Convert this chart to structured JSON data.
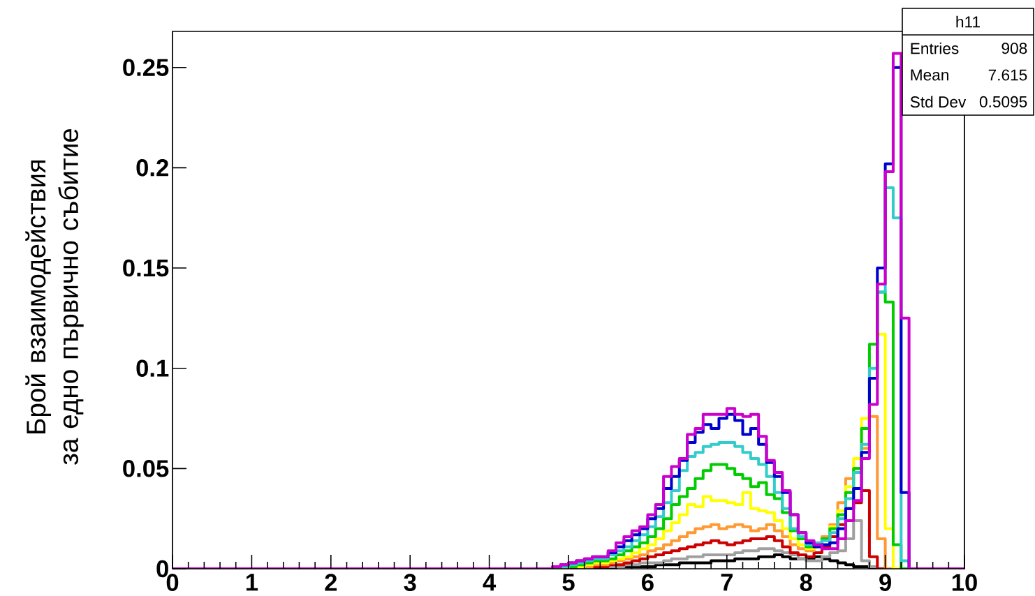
{
  "chart_data": {
    "type": "histogram",
    "ylabel": "Брой взаимодействия за едно първично събитие",
    "annotations": [
      "h11",
      "Entries",
      "908",
      "Mean",
      "7.615",
      "Std Dev",
      "0.5095"
    ],
    "xlim": [
      0,
      10
    ],
    "ylim": [
      0,
      0.268
    ],
    "xticks": [
      0,
      1,
      2,
      3,
      4,
      5,
      6,
      7,
      8,
      9,
      10
    ],
    "yticks": [
      0,
      0.05,
      0.1,
      0.15,
      0.2,
      0.25
    ],
    "bins": [
      0,
      0.1,
      0.2,
      0.3,
      0.4,
      0.5,
      0.6,
      0.7,
      0.8,
      0.9,
      1,
      1.1,
      1.2,
      1.3,
      1.4,
      1.5,
      1.6,
      1.7,
      1.8,
      1.9,
      2,
      2.1,
      2.2,
      2.3,
      2.4,
      2.5,
      2.6,
      2.7,
      2.8,
      2.9,
      3,
      3.1,
      3.2,
      3.3,
      3.4,
      3.5,
      3.6,
      3.7,
      3.8,
      3.9,
      4,
      4.1,
      4.2,
      4.3,
      4.4,
      4.5,
      4.6,
      4.7,
      4.8,
      4.9,
      5,
      5.1,
      5.2,
      5.3,
      5.4,
      5.5,
      5.6,
      5.7,
      5.8,
      5.9,
      6,
      6.1,
      6.2,
      6.3,
      6.4,
      6.5,
      6.6,
      6.7,
      6.8,
      6.9,
      7,
      7.1,
      7.2,
      7.3,
      7.4,
      7.5,
      7.6,
      7.7,
      7.8,
      7.9,
      8,
      8.1,
      8.2,
      8.3,
      8.4,
      8.5,
      8.6,
      8.7,
      8.8,
      8.9,
      9,
      9.1,
      9.2,
      9.3,
      9.4,
      9.5,
      9.6,
      9.7,
      9.8,
      9.9,
      10
    ],
    "series": [
      {
        "color": "#000000",
        "values": [
          0,
          0,
          0,
          0,
          0,
          0,
          0,
          0,
          0,
          0,
          0,
          0,
          0,
          0,
          0,
          0,
          0,
          0,
          0,
          0,
          0,
          0,
          0,
          0,
          0,
          0,
          0,
          0,
          0,
          0,
          0,
          0,
          0,
          0,
          0,
          0,
          0,
          0,
          0,
          0,
          0,
          0,
          0,
          0,
          0,
          0,
          0,
          0,
          0,
          0,
          0,
          0,
          0,
          0,
          0,
          0,
          0.001,
          0.001,
          0.001,
          0.001,
          0.001,
          0.002,
          0.002,
          0.002,
          0.003,
          0.003,
          0.003,
          0.003,
          0.004,
          0.004,
          0.004,
          0.005,
          0.005,
          0.005,
          0.006,
          0.006,
          0.007,
          0.006,
          0.005,
          0.005,
          0.005,
          0.006,
          0.005,
          0.004,
          0.003,
          0.002,
          0.001,
          0.001,
          0,
          0,
          0,
          0,
          0,
          0,
          0,
          0,
          0,
          0,
          0,
          0
        ]
      },
      {
        "color": "#a0a0a0",
        "values": [
          0,
          0,
          0,
          0,
          0,
          0,
          0,
          0,
          0,
          0,
          0,
          0,
          0,
          0,
          0,
          0,
          0,
          0,
          0,
          0,
          0,
          0,
          0,
          0,
          0,
          0,
          0,
          0,
          0,
          0,
          0,
          0,
          0,
          0,
          0,
          0,
          0,
          0,
          0,
          0,
          0,
          0,
          0,
          0,
          0,
          0,
          0,
          0,
          0,
          0,
          0,
          0,
          0,
          0.001,
          0.001,
          0.001,
          0.001,
          0.002,
          0.002,
          0.003,
          0.003,
          0.003,
          0.004,
          0.005,
          0.005,
          0.006,
          0.006,
          0.007,
          0.007,
          0.007,
          0.007,
          0.008,
          0.009,
          0.009,
          0.01,
          0.01,
          0.009,
          0.008,
          0.007,
          0.005,
          0.004,
          0.004,
          0.006,
          0.008,
          0.009,
          0.015,
          0.024,
          0.004,
          0.001,
          0,
          0,
          0,
          0,
          0,
          0,
          0,
          0,
          0,
          0,
          0
        ]
      },
      {
        "color": "#cc0000",
        "values": [
          0,
          0,
          0,
          0,
          0,
          0,
          0,
          0,
          0,
          0,
          0,
          0,
          0,
          0,
          0,
          0,
          0,
          0,
          0,
          0,
          0,
          0,
          0,
          0,
          0,
          0,
          0,
          0,
          0,
          0,
          0,
          0,
          0,
          0,
          0,
          0,
          0,
          0,
          0,
          0,
          0,
          0,
          0,
          0,
          0,
          0,
          0,
          0,
          0,
          0,
          0,
          0.001,
          0.001,
          0.001,
          0.001,
          0.002,
          0.002,
          0.003,
          0.004,
          0.005,
          0.006,
          0.007,
          0.008,
          0.009,
          0.01,
          0.011,
          0.012,
          0.013,
          0.014,
          0.013,
          0.012,
          0.013,
          0.014,
          0.015,
          0.015,
          0.016,
          0.014,
          0.011,
          0.008,
          0.007,
          0.006,
          0.008,
          0.011,
          0.016,
          0.022,
          0.03,
          0.033,
          0.039,
          0.006,
          0,
          0,
          0,
          0,
          0,
          0,
          0,
          0,
          0,
          0,
          0
        ]
      },
      {
        "color": "#ff9933",
        "values": [
          0,
          0,
          0,
          0,
          0,
          0,
          0,
          0,
          0,
          0,
          0,
          0,
          0,
          0,
          0,
          0,
          0,
          0,
          0,
          0,
          0,
          0,
          0,
          0,
          0,
          0,
          0,
          0,
          0,
          0,
          0,
          0,
          0,
          0,
          0,
          0,
          0,
          0,
          0,
          0,
          0,
          0,
          0,
          0,
          0,
          0,
          0,
          0,
          0,
          0,
          0.001,
          0.001,
          0.001,
          0.002,
          0.002,
          0.003,
          0.004,
          0.005,
          0.006,
          0.007,
          0.009,
          0.01,
          0.012,
          0.014,
          0.016,
          0.018,
          0.02,
          0.021,
          0.022,
          0.02,
          0.021,
          0.022,
          0.021,
          0.019,
          0.02,
          0.022,
          0.019,
          0.016,
          0.012,
          0.01,
          0.009,
          0.011,
          0.016,
          0.022,
          0.033,
          0.045,
          0.05,
          0.06,
          0.076,
          0.015,
          0,
          0,
          0,
          0,
          0,
          0,
          0,
          0,
          0,
          0
        ]
      },
      {
        "color": "#ffff00",
        "values": [
          0,
          0,
          0,
          0,
          0,
          0,
          0,
          0,
          0,
          0,
          0,
          0,
          0,
          0,
          0,
          0,
          0,
          0,
          0,
          0,
          0,
          0,
          0,
          0,
          0,
          0,
          0,
          0,
          0,
          0,
          0,
          0,
          0,
          0,
          0,
          0,
          0,
          0,
          0,
          0,
          0,
          0,
          0,
          0,
          0,
          0,
          0,
          0,
          0,
          0.001,
          0.001,
          0.001,
          0.002,
          0.003,
          0.003,
          0.004,
          0.005,
          0.006,
          0.008,
          0.01,
          0.012,
          0.015,
          0.019,
          0.023,
          0.027,
          0.032,
          0.031,
          0.036,
          0.034,
          0.034,
          0.033,
          0.032,
          0.038,
          0.03,
          0.029,
          0.028,
          0.024,
          0.02,
          0.015,
          0.012,
          0.01,
          0.011,
          0.015,
          0.021,
          0.029,
          0.041,
          0.055,
          0.075,
          0.095,
          0.117,
          0.02,
          0,
          0,
          0,
          0,
          0,
          0,
          0,
          0,
          0
        ]
      },
      {
        "color": "#00cc00",
        "values": [
          0,
          0,
          0,
          0,
          0,
          0,
          0,
          0,
          0,
          0,
          0,
          0,
          0,
          0,
          0,
          0,
          0,
          0,
          0,
          0,
          0,
          0,
          0,
          0,
          0,
          0,
          0,
          0,
          0,
          0,
          0,
          0,
          0,
          0,
          0,
          0,
          0,
          0,
          0,
          0,
          0,
          0,
          0,
          0,
          0,
          0,
          0,
          0,
          0,
          0.001,
          0.001,
          0.002,
          0.003,
          0.004,
          0.004,
          0.005,
          0.007,
          0.009,
          0.011,
          0.013,
          0.016,
          0.02,
          0.025,
          0.032,
          0.036,
          0.04,
          0.045,
          0.049,
          0.052,
          0.052,
          0.05,
          0.047,
          0.045,
          0.041,
          0.043,
          0.037,
          0.035,
          0.028,
          0.019,
          0.015,
          0.011,
          0.012,
          0.015,
          0.02,
          0.027,
          0.038,
          0.05,
          0.07,
          0.112,
          0.138,
          0.133,
          0.012,
          0,
          0,
          0,
          0,
          0,
          0,
          0,
          0
        ]
      },
      {
        "color": "#33cccc",
        "values": [
          0,
          0,
          0,
          0,
          0,
          0,
          0,
          0,
          0,
          0,
          0,
          0,
          0,
          0,
          0,
          0,
          0,
          0,
          0,
          0,
          0,
          0,
          0,
          0,
          0,
          0,
          0,
          0,
          0,
          0,
          0,
          0,
          0,
          0,
          0,
          0,
          0,
          0,
          0,
          0,
          0,
          0,
          0,
          0,
          0,
          0,
          0,
          0,
          0.001,
          0.001,
          0.002,
          0.003,
          0.004,
          0.005,
          0.005,
          0.007,
          0.009,
          0.011,
          0.014,
          0.017,
          0.021,
          0.026,
          0.033,
          0.039,
          0.049,
          0.056,
          0.058,
          0.061,
          0.062,
          0.063,
          0.063,
          0.061,
          0.058,
          0.055,
          0.052,
          0.046,
          0.038,
          0.03,
          0.02,
          0.016,
          0.012,
          0.013,
          0.014,
          0.018,
          0.025,
          0.035,
          0.048,
          0.062,
          0.1,
          0.138,
          0.19,
          0.175,
          0.004,
          0,
          0,
          0,
          0,
          0,
          0,
          0
        ]
      },
      {
        "color": "#0000cc",
        "values": [
          0,
          0,
          0,
          0,
          0,
          0,
          0,
          0,
          0,
          0,
          0,
          0,
          0,
          0,
          0,
          0,
          0,
          0,
          0,
          0,
          0,
          0,
          0,
          0,
          0,
          0,
          0,
          0,
          0,
          0,
          0,
          0,
          0,
          0,
          0,
          0,
          0,
          0,
          0,
          0,
          0,
          0,
          0,
          0,
          0,
          0,
          0,
          0,
          0.001,
          0.002,
          0.003,
          0.004,
          0.005,
          0.006,
          0.006,
          0.008,
          0.011,
          0.014,
          0.017,
          0.02,
          0.025,
          0.03,
          0.04,
          0.046,
          0.054,
          0.063,
          0.068,
          0.072,
          0.07,
          0.075,
          0.077,
          0.074,
          0.067,
          0.07,
          0.062,
          0.053,
          0.046,
          0.038,
          0.027,
          0.018,
          0.013,
          0.011,
          0.012,
          0.013,
          0.02,
          0.03,
          0.04,
          0.058,
          0.095,
          0.15,
          0.202,
          0.25,
          0.038,
          0,
          0,
          0,
          0,
          0,
          0,
          0
        ]
      },
      {
        "color": "#cc00cc",
        "values": [
          0,
          0,
          0,
          0,
          0,
          0,
          0,
          0,
          0,
          0,
          0,
          0,
          0,
          0,
          0,
          0,
          0,
          0,
          0,
          0,
          0,
          0,
          0,
          0,
          0,
          0,
          0,
          0,
          0,
          0,
          0,
          0,
          0,
          0,
          0,
          0,
          0,
          0,
          0,
          0,
          0,
          0,
          0,
          0,
          0,
          0,
          0,
          0,
          0.001,
          0.002,
          0.003,
          0.004,
          0.005,
          0.006,
          0.006,
          0.009,
          0.013,
          0.016,
          0.019,
          0.021,
          0.027,
          0.032,
          0.046,
          0.051,
          0.055,
          0.067,
          0.07,
          0.077,
          0.077,
          0.077,
          0.08,
          0.077,
          0.076,
          0.077,
          0.066,
          0.054,
          0.048,
          0.039,
          0.027,
          0.018,
          0.014,
          0.012,
          0.01,
          0.01,
          0.015,
          0.024,
          0.034,
          0.055,
          0.082,
          0.142,
          0.198,
          0.257,
          0.125,
          0,
          0,
          0,
          0,
          0,
          0,
          0
        ]
      }
    ]
  }
}
